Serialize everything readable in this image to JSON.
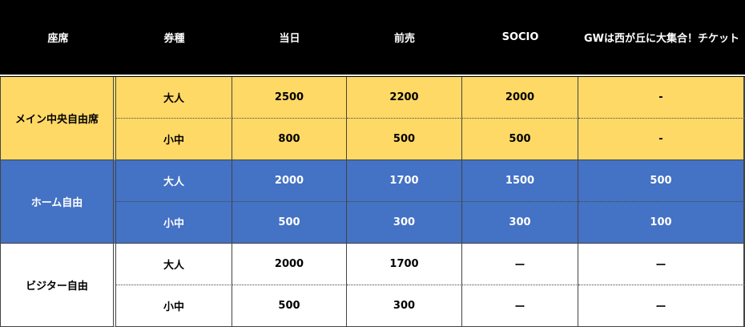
{
  "table": {
    "header": [
      "座席",
      "券種",
      "当日",
      "前売",
      "SOCIO",
      "GWは西が丘に大集合！チケット"
    ],
    "sections": [
      {
        "seat": "メイン中央自由席",
        "rows": [
          [
            "大人",
            2500,
            2200,
            2000,
            "-"
          ],
          [
            "小中",
            800,
            500,
            500,
            "-"
          ]
        ]
      },
      {
        "seat": "ホーム自由",
        "rows": [
          [
            "大人",
            2000,
            1700,
            1500,
            500
          ],
          [
            "小中",
            500,
            300,
            300,
            100
          ]
        ]
      },
      {
        "seat": "ビジター自由",
        "rows": [
          [
            "大人",
            2000,
            1700,
            "ー",
            "ー"
          ],
          [
            "小中",
            500,
            300,
            "ー",
            "ー"
          ]
        ]
      }
    ]
  }
}
